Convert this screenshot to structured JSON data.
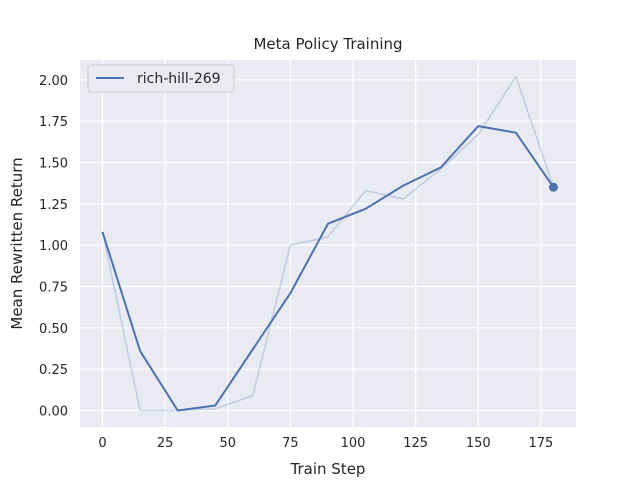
{
  "chart_data": {
    "type": "line",
    "title": "Meta Policy Training",
    "xlabel": "Train Step",
    "ylabel": "Mean Rewritten Return",
    "xlim": [
      -9,
      189
    ],
    "ylim": [
      -0.1,
      2.12
    ],
    "xticks": [
      0,
      25,
      50,
      75,
      100,
      125,
      150,
      175
    ],
    "xtick_labels": [
      "0",
      "25",
      "50",
      "75",
      "100",
      "125",
      "150",
      "175"
    ],
    "yticks": [
      0.0,
      0.25,
      0.5,
      0.75,
      1.0,
      1.25,
      1.5,
      1.75,
      2.0
    ],
    "ytick_labels": [
      "0.00",
      "0.25",
      "0.50",
      "0.75",
      "1.00",
      "1.25",
      "1.50",
      "1.75",
      "2.00"
    ],
    "grid": true,
    "legend_position": "top-left",
    "background": "#eaeaf2",
    "series": [
      {
        "name": "rich-hill-269",
        "kind": "smoothed",
        "color": "#4c72b0",
        "x": [
          0,
          15,
          30,
          45,
          60,
          75,
          90,
          105,
          120,
          135,
          150,
          165,
          180
        ],
        "y": [
          1.08,
          0.36,
          0.0,
          0.03,
          0.37,
          0.71,
          1.13,
          1.22,
          1.36,
          1.47,
          1.72,
          1.68,
          1.35
        ],
        "end_marker": true
      },
      {
        "name": "",
        "kind": "raw",
        "color": "#4c72b0",
        "opacity": 0.25,
        "x": [
          0,
          15,
          30,
          45,
          60,
          75,
          90,
          105,
          120,
          135,
          150,
          165,
          180
        ],
        "y": [
          1.08,
          0.0,
          0.0,
          0.01,
          0.09,
          1.0,
          1.05,
          1.33,
          1.28,
          1.46,
          1.67,
          2.02,
          1.35
        ]
      }
    ]
  }
}
